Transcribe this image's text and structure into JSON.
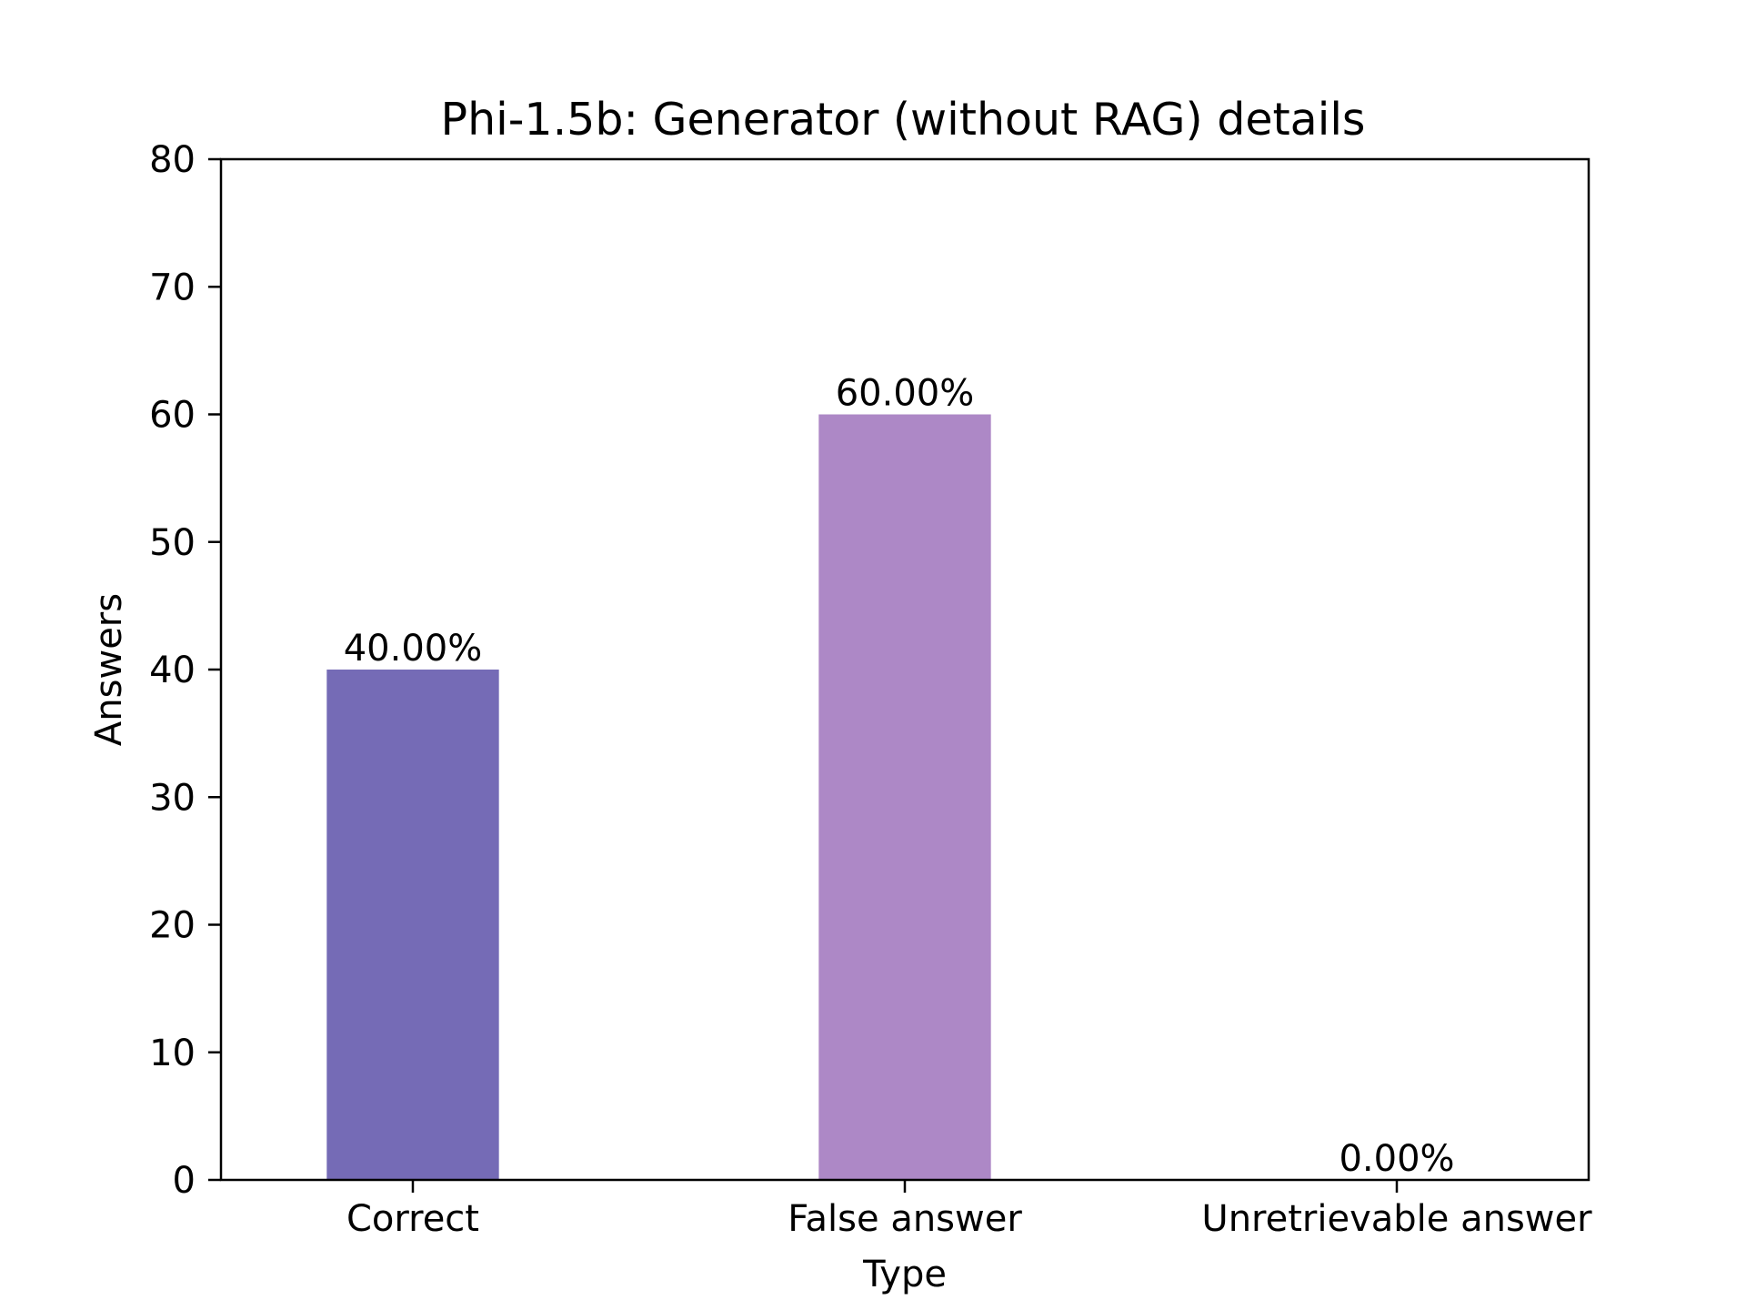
{
  "chart_data": {
    "type": "bar",
    "title": "Phi-1.5b: Generator (without RAG) details",
    "xlabel": "Type",
    "ylabel": "Answers",
    "categories": [
      "Correct",
      "False answer",
      "Unretrievable answer"
    ],
    "values": [
      40,
      60,
      0
    ],
    "data_labels": [
      "40.00%",
      "60.00%",
      "0.00%"
    ],
    "colors": [
      "#756bb6",
      "#ad88c6",
      "#e0c8e8"
    ],
    "ylim": [
      0,
      80
    ],
    "yticks": [
      0,
      10,
      20,
      30,
      40,
      50,
      60,
      70,
      80
    ],
    "ytick_labels": [
      "0",
      "10",
      "20",
      "30",
      "40",
      "50",
      "60",
      "70",
      "80"
    ],
    "grid": false,
    "legend": "none"
  }
}
